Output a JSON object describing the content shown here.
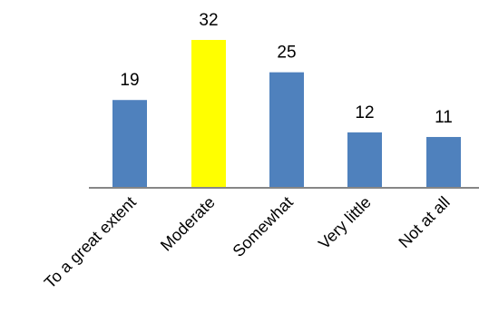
{
  "chart_data": {
    "type": "bar",
    "title": "",
    "xlabel": "",
    "ylabel": "",
    "categories": [
      "To a great extent",
      "Moderate",
      "Somewhat",
      "Very little",
      "Not at all"
    ],
    "values": [
      19,
      32,
      25,
      12,
      11
    ],
    "ylim": [
      0,
      32
    ],
    "grid": false,
    "legend": "none",
    "colors": {
      "default": "#4F81BD",
      "highlight": "#FFFF00",
      "axis": "#868686"
    },
    "highlight_category": "Moderate"
  }
}
